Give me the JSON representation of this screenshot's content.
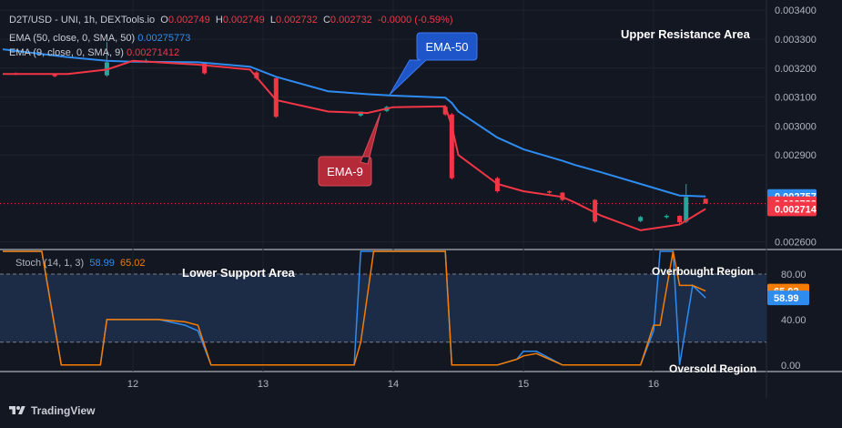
{
  "header": {
    "symbol": "D2T/USD - UNI, 1h, DEXTools.io",
    "open_label": "O",
    "open": "0.002749",
    "high_label": "H",
    "high": "0.002749",
    "low_label": "L",
    "low": "0.002732",
    "close_label": "C",
    "close": "0.002732",
    "change": "-0.0000 (-0.59%)"
  },
  "indicators": {
    "ema50_label": "EMA (50, close, 0, SMA, 50)",
    "ema50_value": "0.00275773",
    "ema9_label": "EMA (9, close, 0, SMA, 9)",
    "ema9_value": "0.00271412",
    "stoch_label": "Stoch (14, 1, 3)",
    "stoch_k": "58.99",
    "stoch_d": "65.02"
  },
  "annotations": {
    "upper_resistance": "Upper Resistance Area",
    "lower_support": "Lower Support Area",
    "overbought": "Overbought Region",
    "oversold": "Oversold Region",
    "ema50_callout": "EMA-50",
    "ema9_callout": "EMA-9"
  },
  "price_tags": [
    "0.002757",
    "0.002732",
    "0.002714"
  ],
  "stoch_tags": [
    "65.02",
    "58.99"
  ],
  "footer": {
    "brand": "TradingView"
  },
  "colors": {
    "background": "#131722",
    "up": "#26a69a",
    "down": "#f23645",
    "ema50": "#2e8cf0",
    "ema9": "#f23645",
    "stoch_k": "#2e8cf0",
    "stoch_d": "#f57c00",
    "stoch_band": "#1c2c47"
  },
  "chart_data": [
    {
      "type": "line",
      "title": "D2T/USD price (1h)",
      "x_ticks": [
        "12",
        "13",
        "14",
        "15",
        "16"
      ],
      "y_ticks": [
        "0.003400",
        "0.003300",
        "0.003200",
        "0.003100",
        "0.003000",
        "0.002900",
        "0.002600"
      ],
      "ylim": [
        0.00258,
        0.00341
      ],
      "x": [
        11.0,
        11.5,
        11.8,
        12.0,
        12.5,
        12.9,
        13.1,
        13.5,
        13.8,
        14.0,
        14.4,
        14.45,
        14.5,
        14.8,
        15.0,
        15.3,
        15.4,
        15.6,
        15.9,
        16.2,
        16.4
      ],
      "series": [
        {
          "name": "EMA-50",
          "values": [
            0.003265,
            0.003238,
            0.003225,
            0.003222,
            0.00322,
            0.003205,
            0.00317,
            0.00312,
            0.00311,
            0.003105,
            0.003098,
            0.00308,
            0.00305,
            0.00296,
            0.00292,
            0.00288,
            0.002865,
            0.00284,
            0.0028,
            0.00276,
            0.002757
          ]
        },
        {
          "name": "EMA-9",
          "values": [
            0.00318,
            0.00318,
            0.003195,
            0.003225,
            0.003212,
            0.003195,
            0.00309,
            0.00305,
            0.003045,
            0.003065,
            0.003068,
            0.003,
            0.0029,
            0.0028,
            0.002775,
            0.002755,
            0.002735,
            0.00269,
            0.00264,
            0.00266,
            0.002714
          ]
        }
      ],
      "candles": [
        {
          "x": 11.1,
          "o": 0.003182,
          "h": 0.003185,
          "c": 0.00318,
          "l": 0.003176
        },
        {
          "x": 11.4,
          "o": 0.00318,
          "h": 0.003182,
          "c": 0.003172,
          "l": 0.003168
        },
        {
          "x": 11.8,
          "o": 0.003175,
          "h": 0.00329,
          "c": 0.00322,
          "l": 0.00317
        },
        {
          "x": 12.1,
          "o": 0.003222,
          "h": 0.003232,
          "c": 0.003226,
          "l": 0.003218
        },
        {
          "x": 12.55,
          "o": 0.003218,
          "h": 0.00322,
          "c": 0.003182,
          "l": 0.003178
        },
        {
          "x": 12.95,
          "o": 0.003185,
          "h": 0.00319,
          "c": 0.003165,
          "l": 0.00316
        },
        {
          "x": 13.1,
          "o": 0.003165,
          "h": 0.00317,
          "c": 0.003032,
          "l": 0.003028
        },
        {
          "x": 13.75,
          "o": 0.003036,
          "h": 0.003048,
          "c": 0.00305,
          "l": 0.003032
        },
        {
          "x": 13.95,
          "o": 0.003052,
          "h": 0.00307,
          "c": 0.003066,
          "l": 0.003048
        },
        {
          "x": 14.4,
          "o": 0.003066,
          "h": 0.003072,
          "c": 0.00304,
          "l": 0.003035
        },
        {
          "x": 14.45,
          "o": 0.00304,
          "h": 0.003045,
          "c": 0.00282,
          "l": 0.002815
        },
        {
          "x": 14.8,
          "o": 0.00282,
          "h": 0.002825,
          "c": 0.002775,
          "l": 0.00277
        },
        {
          "x": 15.2,
          "o": 0.002775,
          "h": 0.002778,
          "c": 0.00277,
          "l": 0.002766
        },
        {
          "x": 15.3,
          "o": 0.00277,
          "h": 0.002772,
          "c": 0.002745,
          "l": 0.00274
        },
        {
          "x": 15.55,
          "o": 0.002745,
          "h": 0.002748,
          "c": 0.00267,
          "l": 0.002665
        },
        {
          "x": 15.9,
          "o": 0.002672,
          "h": 0.00269,
          "c": 0.002686,
          "l": 0.002668
        },
        {
          "x": 16.1,
          "o": 0.002686,
          "h": 0.002695,
          "c": 0.00269,
          "l": 0.00268
        },
        {
          "x": 16.2,
          "o": 0.00269,
          "h": 0.002692,
          "c": 0.002668,
          "l": 0.002662
        },
        {
          "x": 16.25,
          "o": 0.00267,
          "h": 0.0028,
          "c": 0.002755,
          "l": 0.002665
        },
        {
          "x": 16.4,
          "o": 0.002749,
          "h": 0.002749,
          "c": 0.002732,
          "l": 0.002732
        }
      ]
    },
    {
      "type": "line",
      "title": "Stoch (14, 1, 3)",
      "y_ticks": [
        "80.00",
        "40.00",
        "0.00"
      ],
      "ylim": [
        -5,
        100
      ],
      "bands": [
        20,
        80
      ],
      "x": [
        11.0,
        11.3,
        11.45,
        11.7,
        11.75,
        11.8,
        12.2,
        12.4,
        12.5,
        12.6,
        13.7,
        13.75,
        13.85,
        14.35,
        14.4,
        14.45,
        14.8,
        14.95,
        15.0,
        15.1,
        15.3,
        15.5,
        15.9,
        16.0,
        16.05,
        16.15,
        16.2,
        16.3,
        16.4
      ],
      "series": [
        {
          "name": "%K",
          "values": [
            100,
            100,
            0,
            0,
            0,
            40,
            40,
            35,
            30,
            0,
            0,
            100,
            100,
            100,
            100,
            0,
            0,
            5,
            12,
            12,
            0,
            0,
            0,
            30,
            100,
            100,
            0,
            70,
            58.99
          ]
        },
        {
          "name": "%D",
          "values": [
            100,
            100,
            0,
            0,
            0,
            40,
            40,
            38,
            35,
            0,
            0,
            20,
            100,
            100,
            100,
            0,
            0,
            5,
            8,
            10,
            0,
            0,
            0,
            35,
            35,
            100,
            70,
            70,
            65.02
          ]
        }
      ]
    }
  ]
}
